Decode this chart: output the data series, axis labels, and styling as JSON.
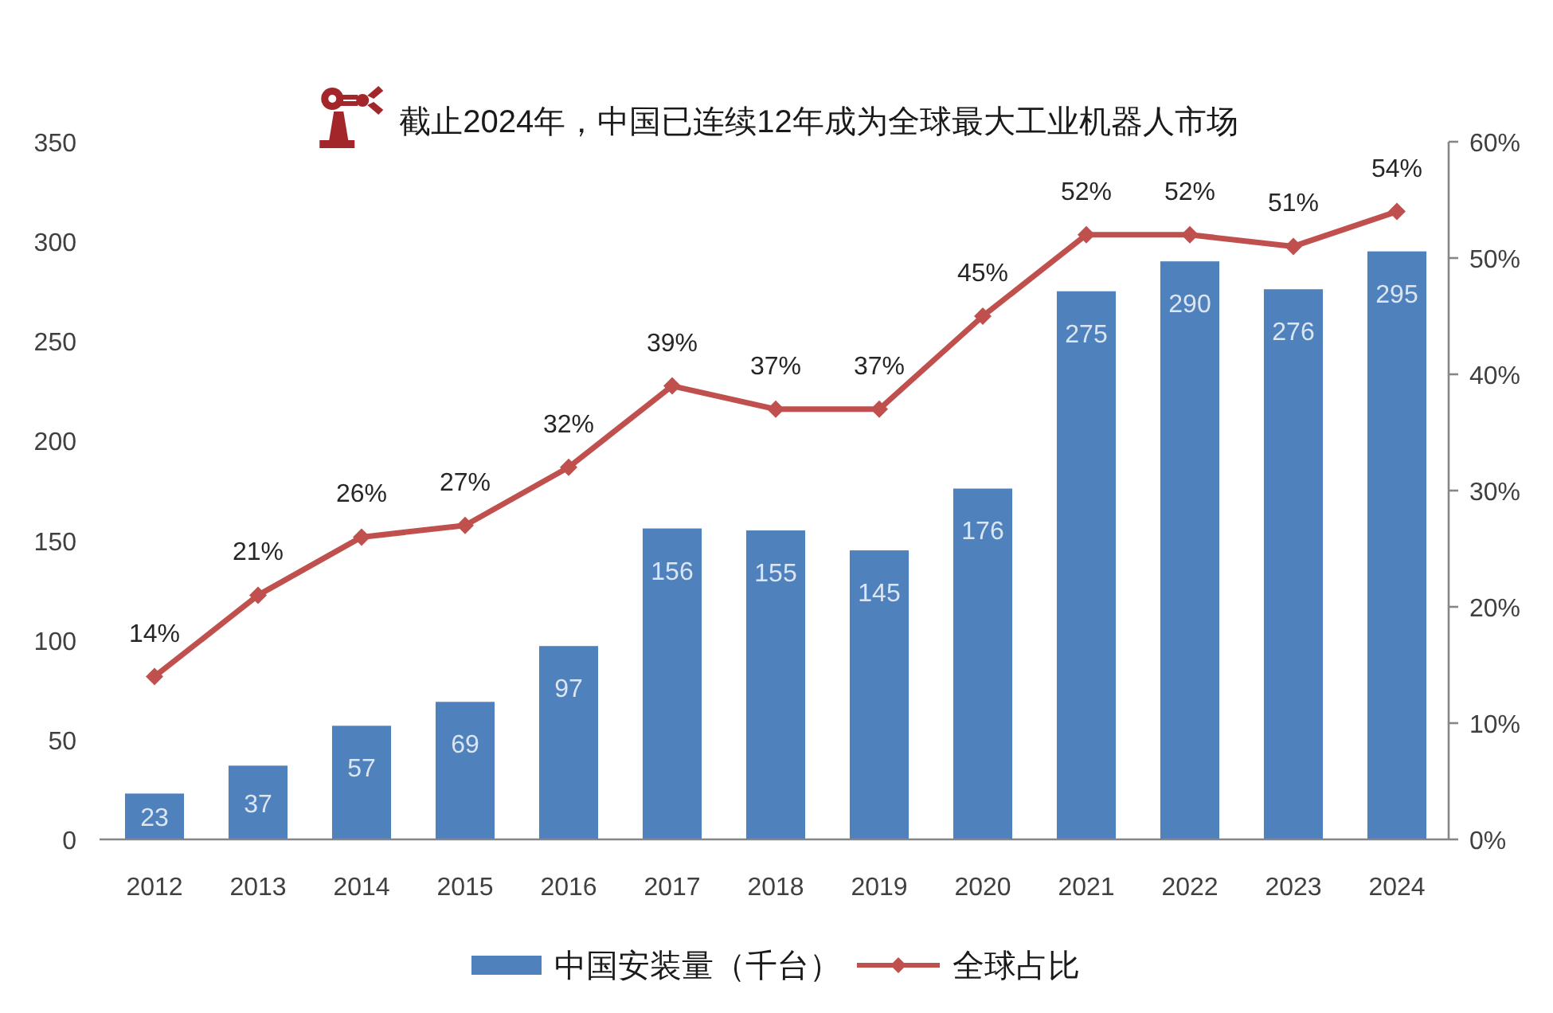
{
  "chart_data": {
    "type": "bar",
    "subtitle": "截止2024年，中国已连续12年成为全球最大工业机器人市场",
    "categories": [
      "2012",
      "2013",
      "2014",
      "2015",
      "2016",
      "2017",
      "2018",
      "2019",
      "2020",
      "2021",
      "2022",
      "2023",
      "2024"
    ],
    "series": [
      {
        "name": "中国安装量（千台）",
        "color": "#4f81bd",
        "values": [
          23,
          37,
          57,
          69,
          97,
          156,
          155,
          145,
          176,
          275,
          290,
          276,
          295
        ],
        "value_labels": [
          "23",
          "37",
          "57",
          "69",
          "97",
          "156",
          "155",
          "145",
          "176",
          "275",
          "290",
          "276",
          "295"
        ]
      },
      {
        "name": "全球占比",
        "type": "line",
        "axis": "y2",
        "color": "#c0504d",
        "marker": "diamond",
        "values": [
          14,
          21,
          26,
          27,
          32,
          39,
          37,
          37,
          45,
          52,
          52,
          51,
          54
        ],
        "value_labels": [
          "14%",
          "21%",
          "26%",
          "27%",
          "32%",
          "39%",
          "37%",
          "37%",
          "45%",
          "52%",
          "52%",
          "51%",
          "54%"
        ]
      }
    ],
    "ylim": [
      0,
      350
    ],
    "yticks": [
      0,
      50,
      100,
      150,
      200,
      250,
      300,
      350
    ],
    "y2lim": [
      0,
      60
    ],
    "y2ticks": [
      {
        "value": 0,
        "label": "0%"
      },
      {
        "value": 10,
        "label": "10%"
      },
      {
        "value": 20,
        "label": "20%"
      },
      {
        "value": 30,
        "label": "30%"
      },
      {
        "value": 40,
        "label": "40%"
      },
      {
        "value": 50,
        "label": "50%"
      },
      {
        "value": 60,
        "label": "60%"
      }
    ],
    "legend": "bottom"
  }
}
